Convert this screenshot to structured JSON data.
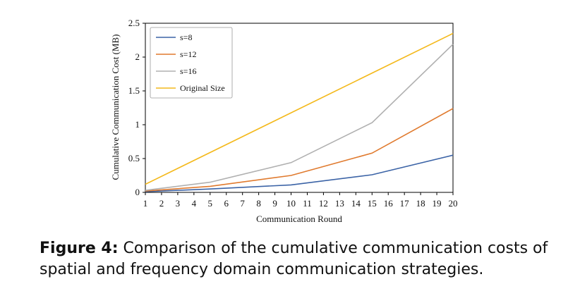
{
  "chart_data": {
    "type": "line",
    "xlabel": "Communication Round",
    "ylabel": "Cumulative Communication Cost (MB)",
    "xticks": [
      1,
      2,
      3,
      4,
      5,
      6,
      7,
      8,
      9,
      10,
      11,
      12,
      13,
      14,
      15,
      16,
      17,
      18,
      19,
      20
    ],
    "yticks": [
      0,
      0.5,
      1,
      1.5,
      2,
      2.5
    ],
    "ytick_labels": [
      "0",
      "0.5",
      "1",
      "1.5",
      "2",
      "2.5"
    ],
    "xlim": [
      1,
      20
    ],
    "ylim": [
      0,
      2.5
    ],
    "legend_position": "top-left",
    "grid": false,
    "series": [
      {
        "name": "s=8",
        "color": "#3b63a6",
        "x": [
          1,
          5,
          10,
          15,
          20
        ],
        "y": [
          0.01,
          0.05,
          0.11,
          0.26,
          0.55
        ]
      },
      {
        "name": "s=12",
        "color": "#e07a2e",
        "x": [
          1,
          5,
          10,
          15,
          20
        ],
        "y": [
          0.02,
          0.09,
          0.25,
          0.58,
          1.24
        ]
      },
      {
        "name": "s=16",
        "color": "#b0b0b0",
        "x": [
          1,
          5,
          10,
          15,
          20
        ],
        "y": [
          0.03,
          0.15,
          0.44,
          1.03,
          2.19
        ]
      },
      {
        "name": "Original Size",
        "color": "#f4b91c",
        "x": [
          1,
          20
        ],
        "y": [
          0.12,
          2.35
        ]
      }
    ]
  },
  "caption": {
    "label": "Figure 4:",
    "text": " Comparison of the cumulative communication costs of spatial and frequency domain communication strategies."
  }
}
